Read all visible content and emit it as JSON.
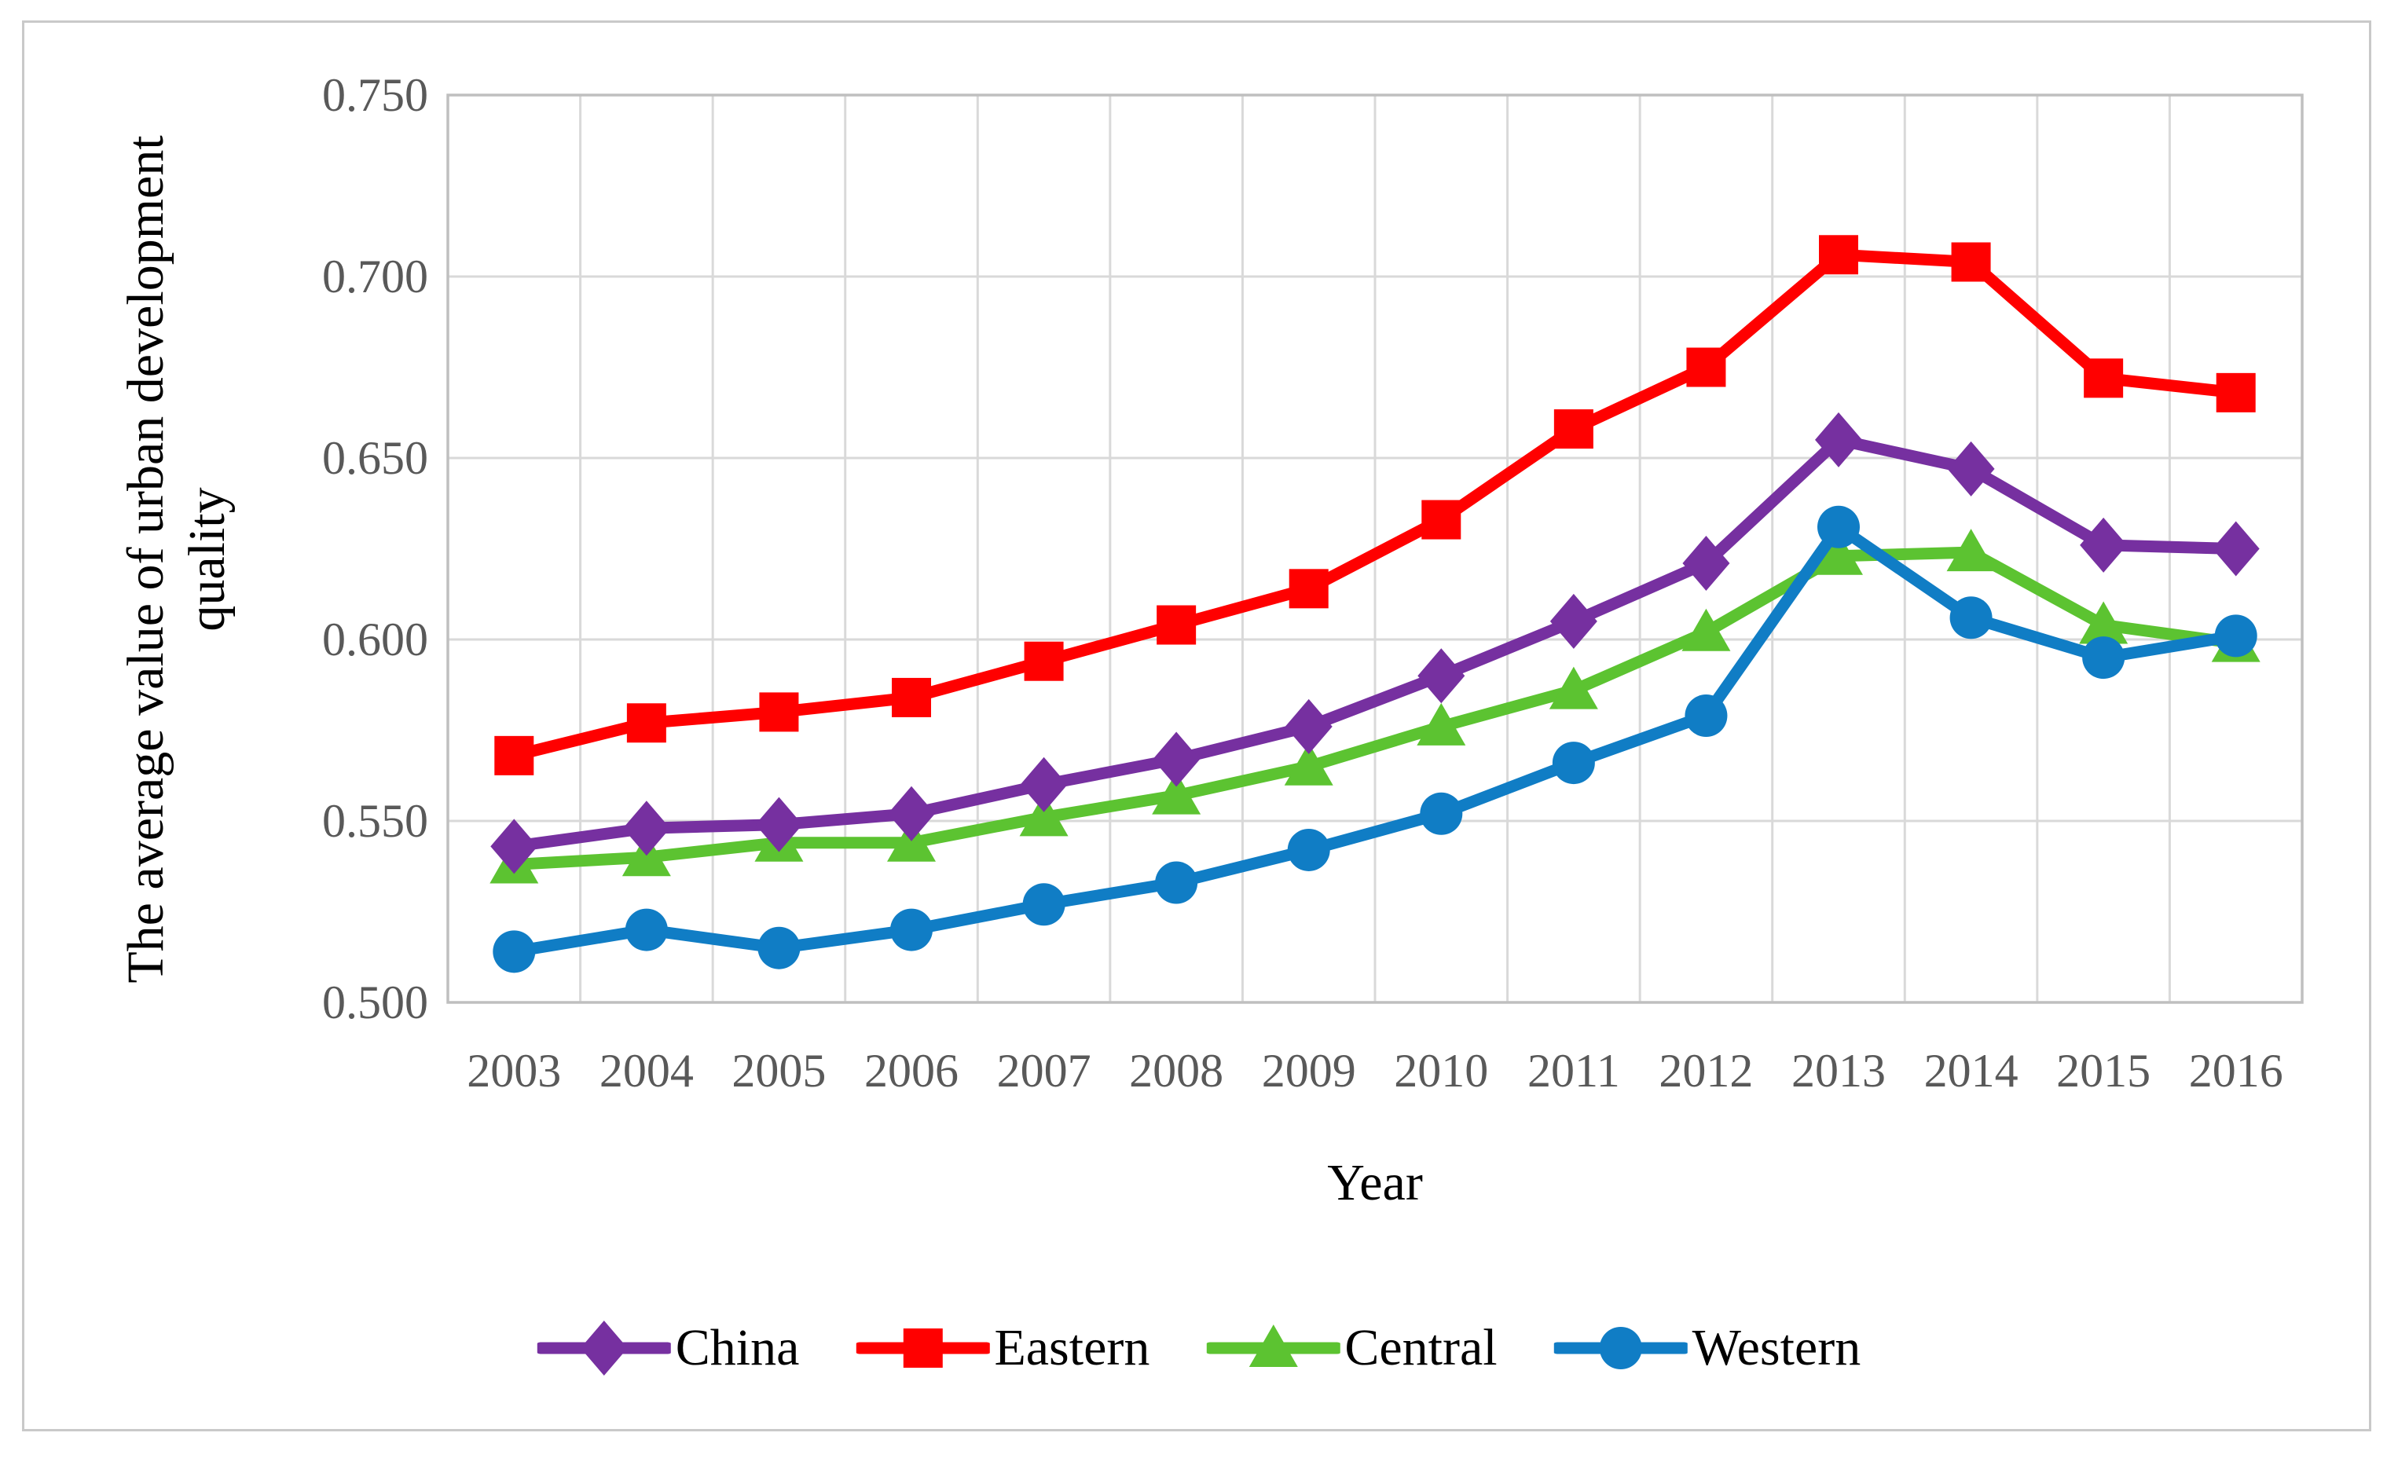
{
  "figure": {
    "background": "#ffffff",
    "frame_color": "#c9c9c9"
  },
  "chart_data": {
    "type": "line",
    "title": "",
    "xlabel": "Year",
    "ylabel": "The average value of urban development quality",
    "ylabel_lines": [
      "The average value of urban development",
      "quality"
    ],
    "categories": [
      "2003",
      "2004",
      "2005",
      "2006",
      "2007",
      "2008",
      "2009",
      "2010",
      "2011",
      "2012",
      "2013",
      "2014",
      "2015",
      "2016"
    ],
    "series": [
      {
        "name": "China",
        "color": "#7630A0",
        "marker": "diamond",
        "values": [
          0.543,
          0.548,
          0.549,
          0.552,
          0.56,
          0.567,
          0.576,
          0.59,
          0.605,
          0.621,
          0.655,
          0.647,
          0.626,
          0.625
        ]
      },
      {
        "name": "Eastern",
        "color": "#FF0000",
        "marker": "square",
        "values": [
          0.568,
          0.577,
          0.58,
          0.584,
          0.594,
          0.604,
          0.614,
          0.633,
          0.658,
          0.675,
          0.706,
          0.704,
          0.672,
          0.668
        ]
      },
      {
        "name": "Central",
        "color": "#5CC331",
        "marker": "triangle",
        "values": [
          0.538,
          0.54,
          0.544,
          0.544,
          0.551,
          0.557,
          0.565,
          0.576,
          0.586,
          0.602,
          0.623,
          0.624,
          0.604,
          0.599
        ]
      },
      {
        "name": "Western",
        "color": "#107DC5",
        "marker": "circle",
        "values": [
          0.514,
          0.52,
          0.515,
          0.52,
          0.527,
          0.533,
          0.542,
          0.552,
          0.566,
          0.579,
          0.631,
          0.606,
          0.595,
          0.601
        ]
      }
    ],
    "y_axis": {
      "min": 0.5,
      "max": 0.75,
      "ticks": [
        {
          "label": "0.750",
          "value": 0.75
        },
        {
          "label": "0.700",
          "value": 0.7
        },
        {
          "label": "0.650",
          "value": 0.65
        },
        {
          "label": "0.600",
          "value": 0.6
        },
        {
          "label": "0.550",
          "value": 0.55
        },
        {
          "label": "0.500",
          "value": 0.5
        }
      ]
    },
    "ylim": [
      0.5,
      0.75
    ],
    "grid": "on",
    "legend_position": "bottom",
    "colors": {
      "gridline": "#D9D9D9",
      "plot_border": "#BFBFBF",
      "tick_label": "#595959",
      "text": "#000000"
    }
  }
}
